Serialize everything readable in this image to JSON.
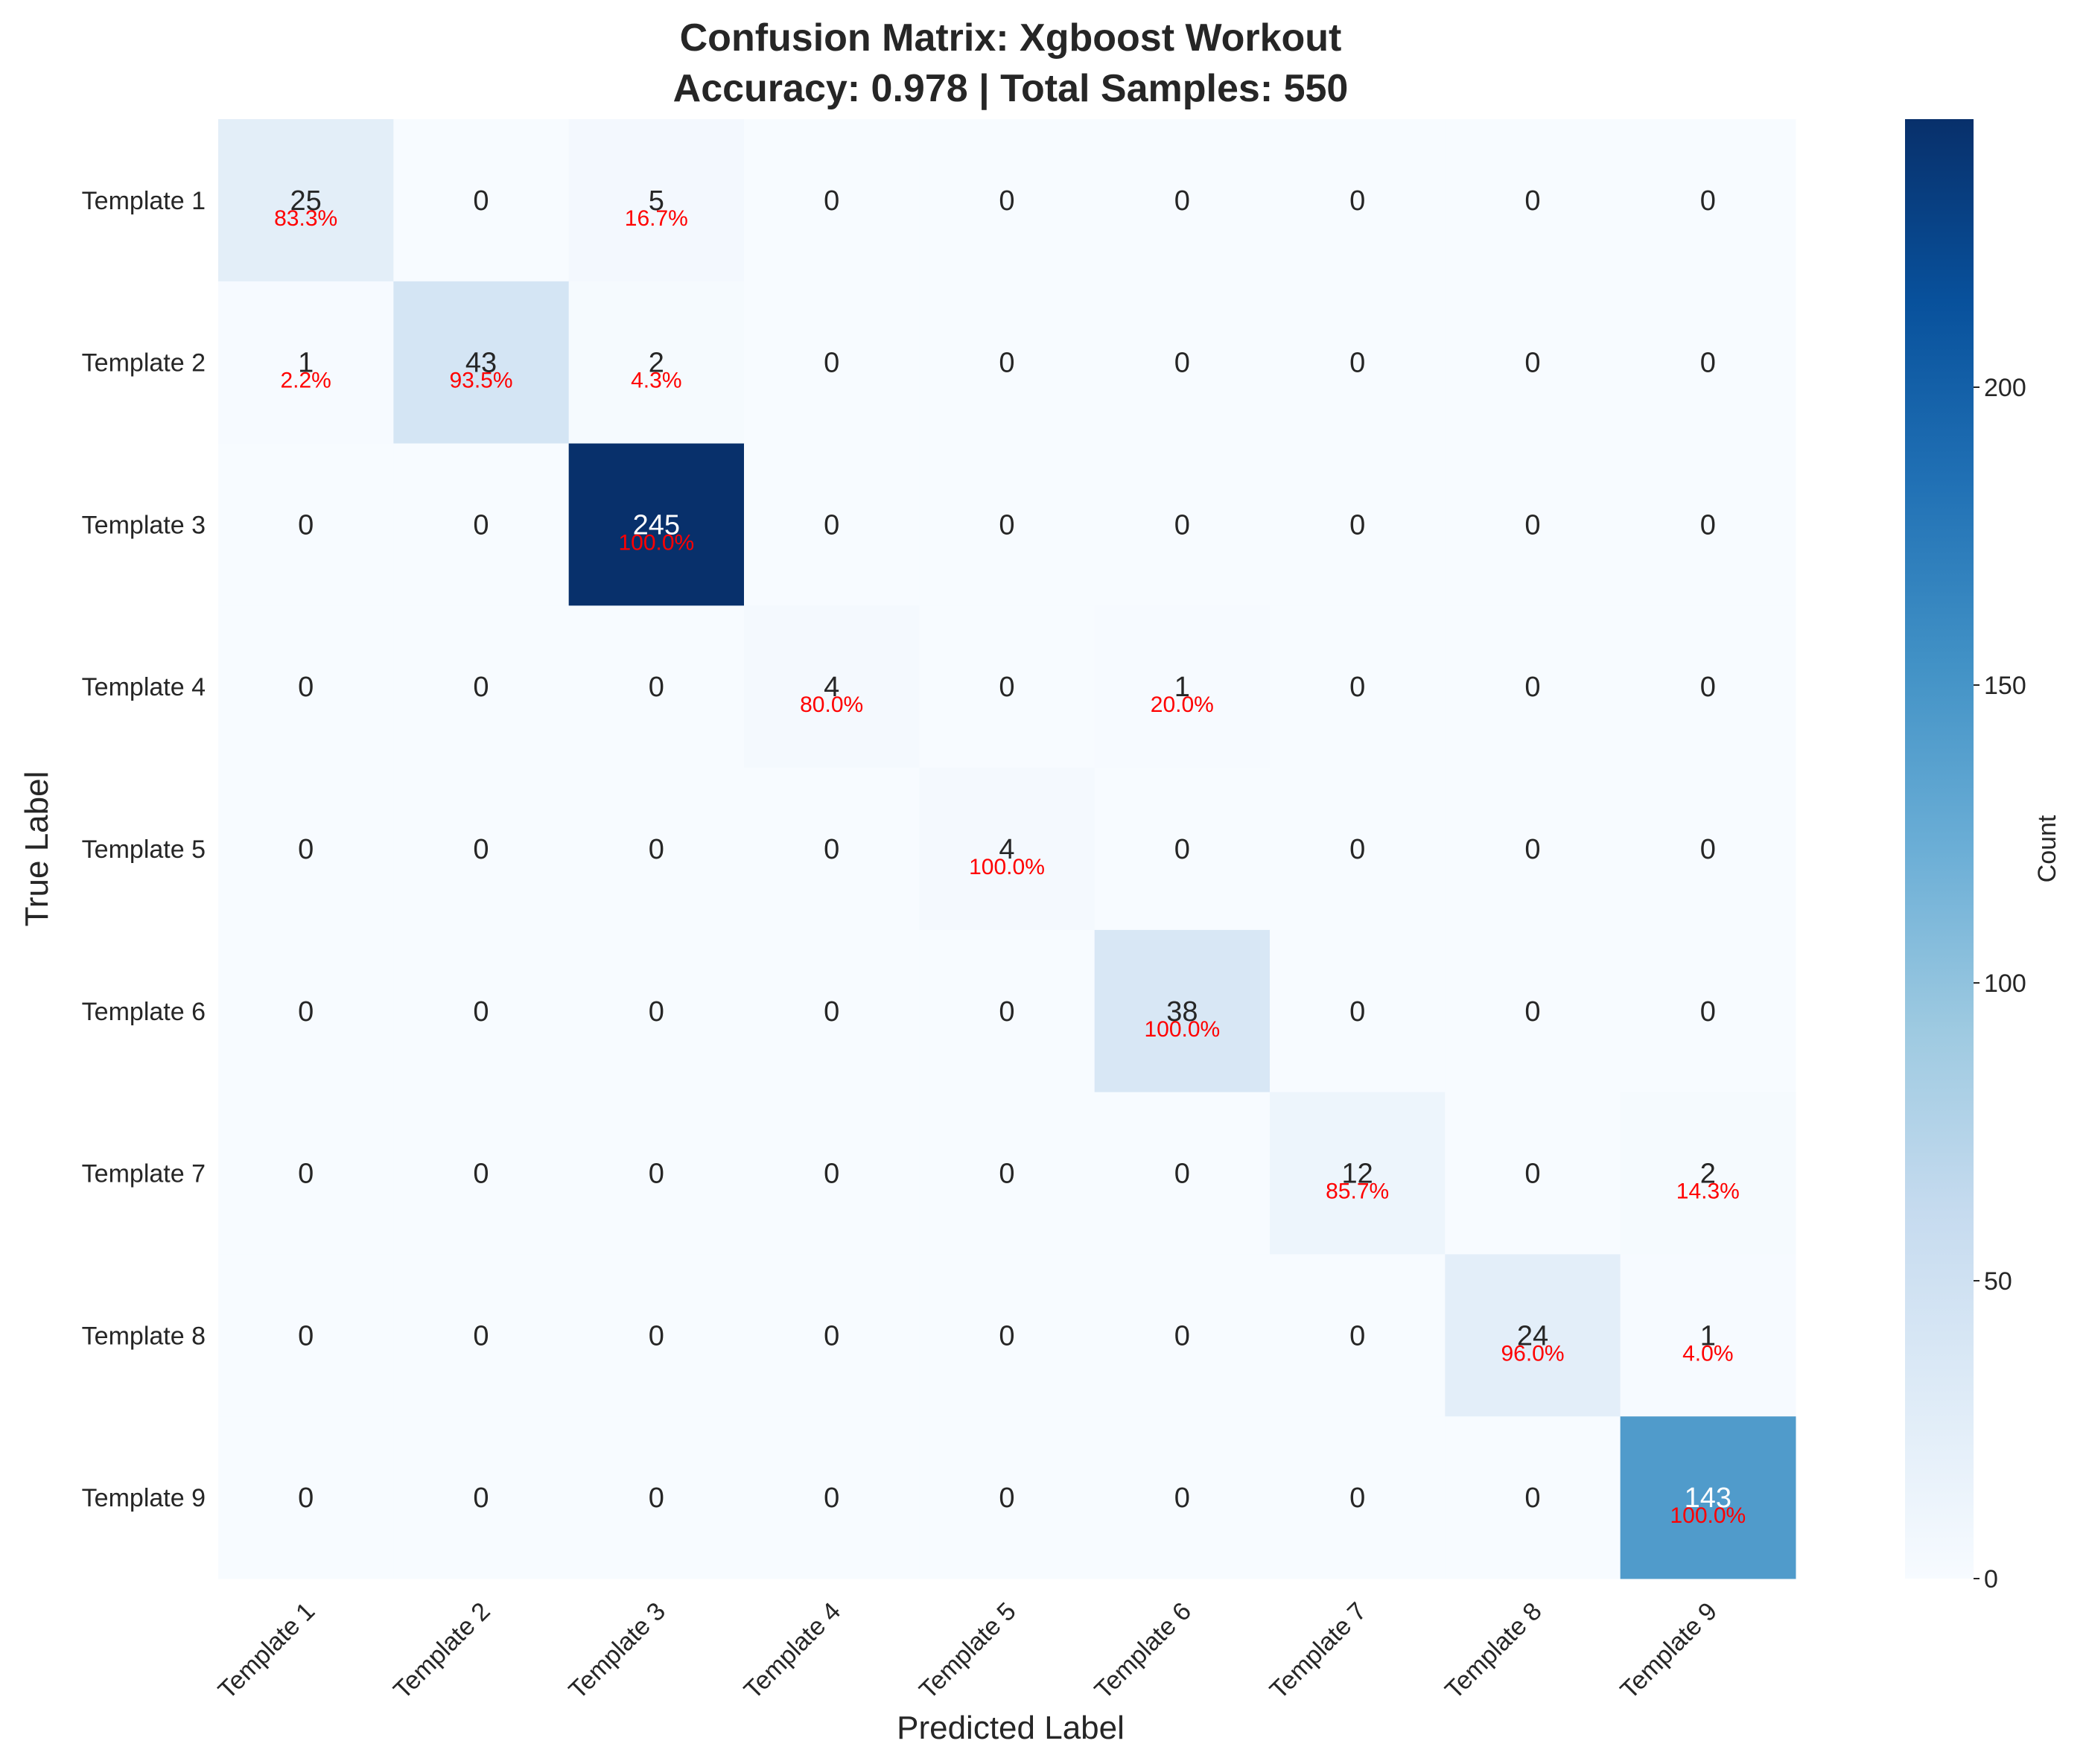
{
  "chart_data": {
    "type": "heatmap",
    "title": "Confusion Matrix: Xgboost Workout",
    "subtitle": "Accuracy: 0.978 | Total Samples: 550",
    "xlabel": "Predicted Label",
    "ylabel": "True Label",
    "colorbar_label": "Count",
    "colorbar_ticks": [
      0,
      50,
      100,
      150,
      200
    ],
    "vmin": 0,
    "vmax": 245,
    "colormap": "Blues",
    "colors": {
      "annotation_percent": "#ff0000",
      "text_dark": "#262626",
      "text_light": "#ffffff"
    },
    "labels": [
      "Template 1",
      "Template 2",
      "Template 3",
      "Template 4",
      "Template 5",
      "Template 6",
      "Template 7",
      "Template 8",
      "Template 9"
    ],
    "matrix": [
      [
        25,
        0,
        5,
        0,
        0,
        0,
        0,
        0,
        0
      ],
      [
        1,
        43,
        2,
        0,
        0,
        0,
        0,
        0,
        0
      ],
      [
        0,
        0,
        245,
        0,
        0,
        0,
        0,
        0,
        0
      ],
      [
        0,
        0,
        0,
        4,
        0,
        1,
        0,
        0,
        0
      ],
      [
        0,
        0,
        0,
        0,
        4,
        0,
        0,
        0,
        0
      ],
      [
        0,
        0,
        0,
        0,
        0,
        38,
        0,
        0,
        0
      ],
      [
        0,
        0,
        0,
        0,
        0,
        0,
        12,
        0,
        2
      ],
      [
        0,
        0,
        0,
        0,
        0,
        0,
        0,
        24,
        1
      ],
      [
        0,
        0,
        0,
        0,
        0,
        0,
        0,
        0,
        143
      ]
    ],
    "percent_labels": [
      [
        "83.3%",
        null,
        "16.7%",
        null,
        null,
        null,
        null,
        null,
        null
      ],
      [
        "2.2%",
        "93.5%",
        "4.3%",
        null,
        null,
        null,
        null,
        null,
        null
      ],
      [
        null,
        null,
        "100.0%",
        null,
        null,
        null,
        null,
        null,
        null
      ],
      [
        null,
        null,
        null,
        "80.0%",
        null,
        "20.0%",
        null,
        null,
        null
      ],
      [
        null,
        null,
        null,
        null,
        "100.0%",
        null,
        null,
        null,
        null
      ],
      [
        null,
        null,
        null,
        null,
        null,
        "100.0%",
        null,
        null,
        null
      ],
      [
        null,
        null,
        null,
        null,
        null,
        null,
        "85.7%",
        null,
        "14.3%"
      ],
      [
        null,
        null,
        null,
        null,
        null,
        null,
        null,
        "96.0%",
        "4.0%"
      ],
      [
        null,
        null,
        null,
        null,
        null,
        null,
        null,
        null,
        "100.0%"
      ]
    ]
  }
}
